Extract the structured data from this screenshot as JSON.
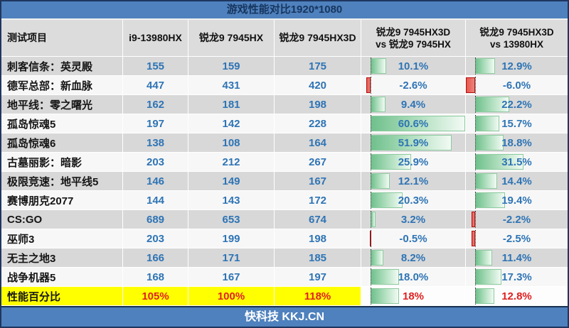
{
  "title": "游戏性能对比1920*1080",
  "footer": "快科技 KKJ.CN",
  "header": {
    "col_test": "测试项目",
    "col_i9": "i9-13980HX",
    "col_hx": "锐龙9 7945HX",
    "col_hx3d": "锐龙9 7945HX3D",
    "col_vs_hx_line1": "锐龙9 7945HX3D",
    "col_vs_hx_line2": "vs 锐龙9 7945HX",
    "col_vs_i9_line1": "锐龙9 7945HX3D",
    "col_vs_i9_line2": "vs 13980HX"
  },
  "chart_data": {
    "type": "table",
    "title": "游戏性能对比1920*1080",
    "columns": [
      "测试项目",
      "i9-13980HX",
      "锐龙9 7945HX",
      "锐龙9 7945HX3D",
      "锐龙9 7945HX3D vs 锐龙9 7945HX",
      "锐龙9 7945HX3D vs 13980HX"
    ],
    "games": [
      {
        "name": "刺客信条：英灵殿",
        "i9_13980hx": "155",
        "r9_7945hx": "159",
        "r9_7945hx3d": "175",
        "vs_7945hx_pct": "10.1%",
        "vs_13980hx_pct": "12.9%"
      },
      {
        "name": "德军总部：新血脉",
        "i9_13980hx": "447",
        "r9_7945hx": "431",
        "r9_7945hx3d": "420",
        "vs_7945hx_pct": "-2.6%",
        "vs_13980hx_pct": "-6.0%"
      },
      {
        "name": "地平线：零之曙光",
        "i9_13980hx": "162",
        "r9_7945hx": "181",
        "r9_7945hx3d": "198",
        "vs_7945hx_pct": "9.4%",
        "vs_13980hx_pct": "22.2%"
      },
      {
        "name": "孤岛惊魂5",
        "i9_13980hx": "197",
        "r9_7945hx": "142",
        "r9_7945hx3d": "228",
        "vs_7945hx_pct": "60.6%",
        "vs_13980hx_pct": "15.7%"
      },
      {
        "name": "孤岛惊魂6",
        "i9_13980hx": "138",
        "r9_7945hx": "108",
        "r9_7945hx3d": "164",
        "vs_7945hx_pct": "51.9%",
        "vs_13980hx_pct": "18.8%"
      },
      {
        "name": "古墓丽影：暗影",
        "i9_13980hx": "203",
        "r9_7945hx": "212",
        "r9_7945hx3d": "267",
        "vs_7945hx_pct": "25.9%",
        "vs_13980hx_pct": "31.5%"
      },
      {
        "name": "极限竞速：地平线5",
        "i9_13980hx": "146",
        "r9_7945hx": "149",
        "r9_7945hx3d": "167",
        "vs_7945hx_pct": "12.1%",
        "vs_13980hx_pct": "14.4%"
      },
      {
        "name": "赛博朋克2077",
        "i9_13980hx": "144",
        "r9_7945hx": "143",
        "r9_7945hx3d": "172",
        "vs_7945hx_pct": "20.3%",
        "vs_13980hx_pct": "19.4%"
      },
      {
        "name": "CS:GO",
        "i9_13980hx": "689",
        "r9_7945hx": "653",
        "r9_7945hx3d": "674",
        "vs_7945hx_pct": "3.2%",
        "vs_13980hx_pct": "-2.2%"
      },
      {
        "name": "巫师3",
        "i9_13980hx": "203",
        "r9_7945hx": "199",
        "r9_7945hx3d": "198",
        "vs_7945hx_pct": "-0.5%",
        "vs_13980hx_pct": "-2.5%"
      },
      {
        "name": "无主之地3",
        "i9_13980hx": "166",
        "r9_7945hx": "171",
        "r9_7945hx3d": "185",
        "vs_7945hx_pct": "8.2%",
        "vs_13980hx_pct": "11.4%"
      },
      {
        "name": "战争机器5",
        "i9_13980hx": "168",
        "r9_7945hx": "167",
        "r9_7945hx3d": "197",
        "vs_7945hx_pct": "18.0%",
        "vs_13980hx_pct": "17.3%"
      }
    ],
    "summary": {
      "name": "性能百分比",
      "i9_13980hx": "105%",
      "r9_7945hx": "100%",
      "r9_7945hx3d": "118%",
      "vs_7945hx_pct": "18%",
      "vs_13980hx_pct": "12.8%"
    },
    "databar": {
      "scale_min": -6.0,
      "scale_max": 60.6,
      "positive_style": "green-gradient",
      "negative_style": "red"
    },
    "layout": {
      "grid": "off",
      "striped_rows": true,
      "bar_columns": [
        4,
        5
      ]
    }
  },
  "colors": {
    "title_bar_bg": "#4e81bd",
    "title_text": "#17355e",
    "header_bg": "#dcdcdc",
    "row_gray": "#d8d8d8",
    "row_light": "#f7f7f7",
    "value_blue": "#2e74b5",
    "summary_bg": "#ffff00",
    "summary_value_red": "#e02020",
    "bar_green": "#6fc08c",
    "bar_red": "#e4574d",
    "footer_bg": "#4e81bd",
    "footer_text": "#ffffff"
  }
}
